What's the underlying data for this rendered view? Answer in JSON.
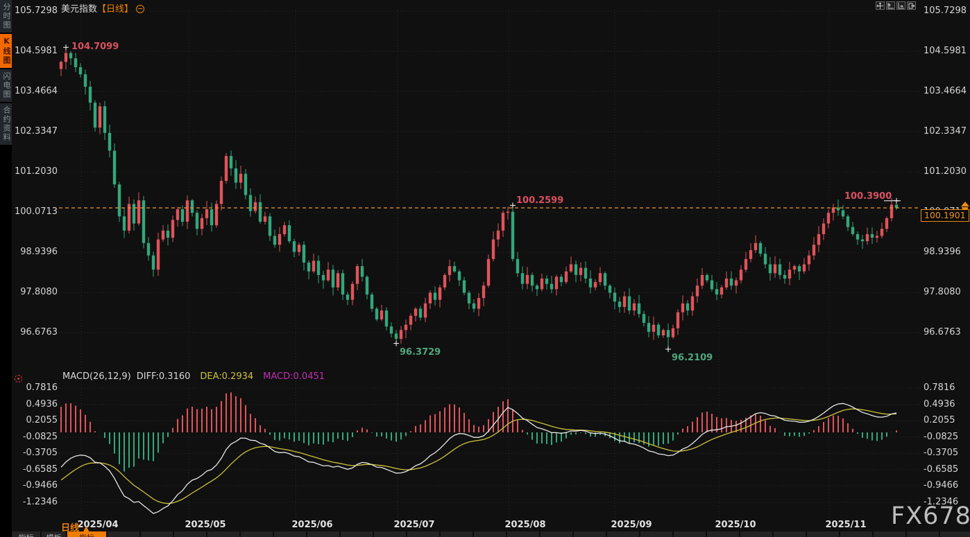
{
  "header": {
    "symbol": "美元指数",
    "period_tag": "【日线】"
  },
  "sidebar": {
    "items": [
      {
        "label": "分时图",
        "active": false
      },
      {
        "label": "K线图",
        "active": true
      },
      {
        "label": "闪电图",
        "active": false
      },
      {
        "label": "合约资料",
        "active": false
      }
    ]
  },
  "toolbar": {
    "icons": [
      "move-tool-icon",
      "fit-y-axis-icon",
      "fit-x-axis-icon",
      "pan-right-icon"
    ]
  },
  "watermark": "FX678",
  "footer": {
    "period_label": "日线",
    "tabs": [
      {
        "label": "指标",
        "active": false
      },
      {
        "label": "模板",
        "active": false
      },
      {
        "label": "指标",
        "active": true
      }
    ]
  },
  "chart_data": {
    "type": "candlestick",
    "title": "美元指数 日线 (US Dollar Index, daily)",
    "price_axis_labels": [
      "105.7298",
      "104.5981",
      "103.4664",
      "102.3347",
      "101.2030",
      "100.0713",
      "98.9396",
      "97.8080",
      "96.6763"
    ],
    "macd_axis_labels": [
      "0.7816",
      "0.4936",
      "0.2055",
      "-0.0825",
      "-0.3705",
      "-0.6585",
      "-0.9466",
      "-1.2346"
    ],
    "months": [
      "2025/04",
      "2025/05",
      "2025/06",
      "2025/07",
      "2025/08",
      "2025/09",
      "2025/10",
      "2025/11"
    ],
    "current_price": "100.1901",
    "current_price_value": 100.1901,
    "macd_header": {
      "name": "MACD(26,12,9)",
      "diff": "DIFF:0.3160",
      "dea": "DEA:0.2934",
      "macd": "MACD:0.0451"
    },
    "annotations": [
      {
        "index": 1,
        "price": 104.7099,
        "text": "104.7099",
        "side": "high",
        "placement": "right"
      },
      {
        "index": 69,
        "price": 96.3729,
        "text": "96.3729",
        "side": "low",
        "placement": "below-right"
      },
      {
        "index": 93,
        "price": 100.2599,
        "text": "100.2599",
        "side": "high",
        "placement": "above-right"
      },
      {
        "index": 125,
        "price": 96.2109,
        "text": "96.2109",
        "side": "low",
        "placement": "below-right"
      },
      {
        "index": 172,
        "price": 100.39,
        "text": "100.3900",
        "side": "high",
        "placement": "above-left"
      }
    ],
    "candles": {
      "first_open": 104.1,
      "closes": [
        104.3,
        104.55,
        104.4,
        104.15,
        103.95,
        103.6,
        103.15,
        102.45,
        103.05,
        102.3,
        101.8,
        100.85,
        99.95,
        99.55,
        100.3,
        99.75,
        100.4,
        99.2,
        98.85,
        98.45,
        99.3,
        99.55,
        99.35,
        99.85,
        100.15,
        99.8,
        100.4,
        100.05,
        99.6,
        99.9,
        100.15,
        99.7,
        100.3,
        100.95,
        101.65,
        101.3,
        100.9,
        101.15,
        100.55,
        100.1,
        100.35,
        99.8,
        99.95,
        99.4,
        99.15,
        99.45,
        99.7,
        99.25,
        98.95,
        99.15,
        98.65,
        98.4,
        98.7,
        98.3,
        98.15,
        98.45,
        97.95,
        98.35,
        97.75,
        97.6,
        98.05,
        98.55,
        98.25,
        97.75,
        97.35,
        97.05,
        97.3,
        96.85,
        96.65,
        96.5,
        96.75,
        96.9,
        97.15,
        97.35,
        97.1,
        97.5,
        97.8,
        97.6,
        97.95,
        98.3,
        98.55,
        98.4,
        98.15,
        97.8,
        97.5,
        97.35,
        97.65,
        98.0,
        98.75,
        99.3,
        99.55,
        100.05,
        100.08,
        98.75,
        98.35,
        98.05,
        98.3,
        98.0,
        97.9,
        98.2,
        98.05,
        97.9,
        98.25,
        98.1,
        98.4,
        98.6,
        98.3,
        98.5,
        98.2,
        97.95,
        98.1,
        98.35,
        98.0,
        97.8,
        97.55,
        97.4,
        97.7,
        97.3,
        97.5,
        97.2,
        96.95,
        96.7,
        96.9,
        96.6,
        96.75,
        96.55,
        96.8,
        97.25,
        97.5,
        97.3,
        97.7,
        98.0,
        98.3,
        98.15,
        97.9,
        97.75,
        97.95,
        98.2,
        98.0,
        98.15,
        98.45,
        98.75,
        99.0,
        99.2,
        98.9,
        98.6,
        98.35,
        98.6,
        98.3,
        98.2,
        98.45,
        98.55,
        98.4,
        98.6,
        98.85,
        99.15,
        99.45,
        99.75,
        100.05,
        100.2,
        100.12,
        99.95,
        99.65,
        99.45,
        99.3,
        99.25,
        99.45,
        99.35,
        99.4,
        99.6,
        99.9,
        100.28,
        100.1901
      ]
    },
    "colors": {
      "up": "#df545a",
      "down": "#34a77c",
      "annotation_high": "#d9515f",
      "annotation_low": "#4fa77e",
      "diff_line": "#e8e8e8",
      "dea_line": "#cdc33c",
      "macd_value": "#c22fb0",
      "grid": "#2c2c2c",
      "accent_orange": "#f08200",
      "current_line": "#ee9629"
    },
    "layout": {
      "grid": "dotted",
      "price_panel": "top",
      "macd_panel": "bottom",
      "legend_position": "top-left"
    }
  }
}
